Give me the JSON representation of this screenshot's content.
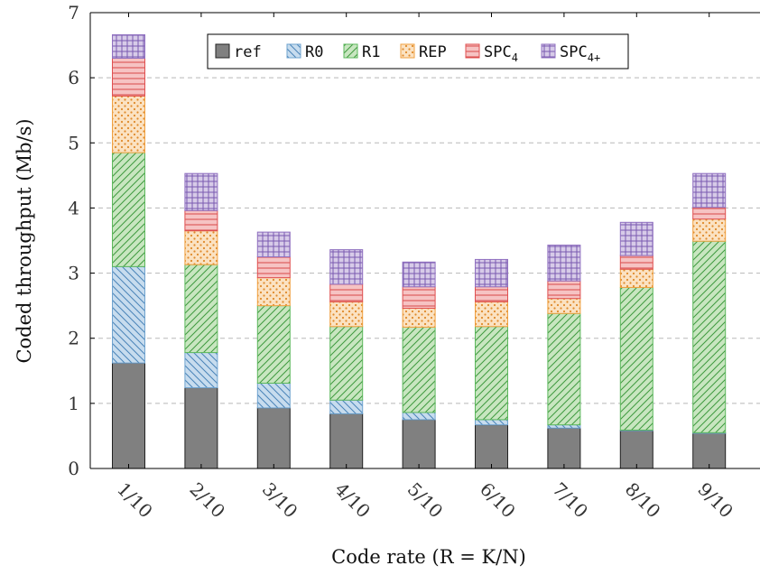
{
  "chart_data": {
    "type": "bar",
    "stacked": true,
    "categories": [
      "1/10",
      "2/10",
      "3/10",
      "4/10",
      "5/10",
      "6/10",
      "7/10",
      "8/10",
      "9/10"
    ],
    "xlabel": "Code rate (R = K/N)",
    "ylabel": "Coded throughput (Mb/s)",
    "ylim": [
      0,
      7
    ],
    "yticks": [
      0,
      1,
      2,
      3,
      4,
      5,
      6,
      7
    ],
    "grid": "horizontal dashed",
    "legend_position": "top-center",
    "series": [
      {
        "name": "ref",
        "color": "#808080",
        "pattern": "solid",
        "values": [
          1.62,
          1.24,
          0.93,
          0.84,
          0.75,
          0.67,
          0.62,
          0.58,
          0.54
        ]
      },
      {
        "name": "R0",
        "color": "#6fa3cf",
        "pattern": "diagonal-back",
        "values": [
          1.48,
          0.54,
          0.38,
          0.21,
          0.11,
          0.08,
          0.05,
          0.01,
          0.01
        ]
      },
      {
        "name": "R1",
        "color": "#5cb85c",
        "pattern": "diagonal-forward",
        "values": [
          1.75,
          1.35,
          1.19,
          1.13,
          1.31,
          1.43,
          1.71,
          2.19,
          2.94
        ]
      },
      {
        "name": "REP",
        "color": "#f0a040",
        "pattern": "dots",
        "values": [
          0.87,
          0.52,
          0.43,
          0.38,
          0.29,
          0.38,
          0.23,
          0.28,
          0.34
        ]
      },
      {
        "name": "SPC",
        "subscript": "4",
        "color": "#e05050",
        "pattern": "horizontal",
        "values": [
          0.58,
          0.31,
          0.32,
          0.27,
          0.33,
          0.23,
          0.27,
          0.21,
          0.18
        ]
      },
      {
        "name": "SPC",
        "subscript": "4+",
        "color": "#9070c0",
        "pattern": "grid",
        "values": [
          0.36,
          0.57,
          0.38,
          0.53,
          0.38,
          0.42,
          0.55,
          0.51,
          0.52
        ]
      }
    ]
  }
}
